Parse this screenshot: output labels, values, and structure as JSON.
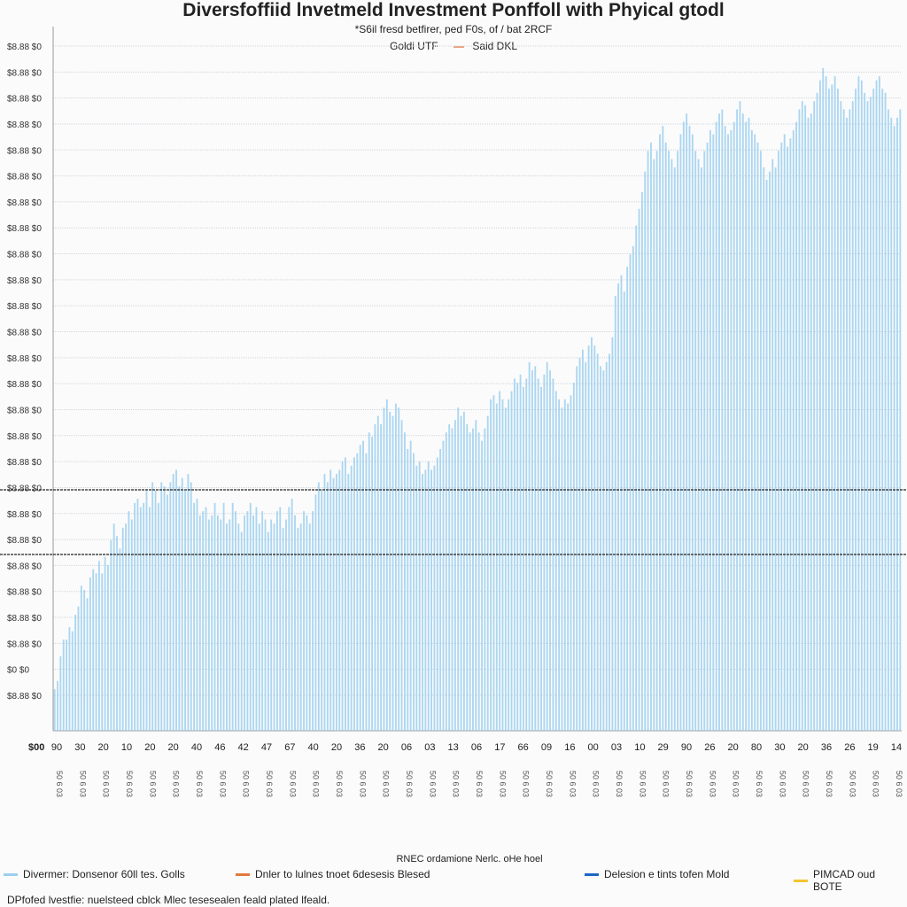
{
  "chart_data": {
    "type": "bar",
    "title": "Diversfoffiid lnvetmeld Investment Ponffoll with Phyical gtodl",
    "subtitle": "*S6il fresd betfirer, ped F0s, of / bat 2RCF",
    "legend_top": [
      {
        "label": "Goldi UTF",
        "color": "#7fbfe6"
      },
      {
        "label": "Said DKL",
        "color": "#e8a07c"
      }
    ],
    "y_tick_labels": [
      "$8.88 $0",
      "$8.88 $0",
      "$8.88 $0",
      "$8.88 $0",
      "$8.88 $0",
      "$8.88 $0",
      "$8.88 $0",
      "$8.88 $0",
      "$8.88 $0",
      "$8.88 $0",
      "$8.88 $0",
      "$8.88 $0",
      "$8.88 $0",
      "$8.88 $0",
      "$8.88 $0",
      "$8.88 $0",
      "$8.88 $0",
      "$8.88 $0",
      "$8.88 $0",
      "$8.88 $0",
      "$8.88 $0",
      "$8.88 $0",
      "$8.88 $0",
      "$8.88 $0",
      "$0 $0",
      "$8.88 $0"
    ],
    "origin_label": "$00",
    "x_tick_labels": [
      "90",
      "30",
      "20",
      "10",
      "20",
      "20",
      "40",
      "46",
      "42",
      "47",
      "67",
      "40",
      "20",
      "36",
      "20",
      "06",
      "03",
      "13",
      "06",
      "17",
      "66",
      "09",
      "16",
      "00",
      "03",
      "10",
      "29",
      "90",
      "26",
      "20",
      "80",
      "30",
      "20",
      "36",
      "26",
      "19",
      "14"
    ],
    "x_date_label": "50 6 03",
    "x_axis_title": "RNEC ordamione Nerlc. oHe hoel",
    "series": [
      {
        "name": "Divermer: Donsenor 60ll tes. Golls",
        "color": "#9ccfee",
        "values": [
          0.1,
          0.12,
          0.18,
          0.22,
          0.22,
          0.25,
          0.24,
          0.28,
          0.3,
          0.35,
          0.34,
          0.32,
          0.37,
          0.39,
          0.38,
          0.41,
          0.38,
          0.42,
          0.4,
          0.46,
          0.5,
          0.47,
          0.44,
          0.49,
          0.5,
          0.53,
          0.51,
          0.55,
          0.56,
          0.54,
          0.55,
          0.58,
          0.54,
          0.6,
          0.58,
          0.55,
          0.6,
          0.59,
          0.57,
          0.6,
          0.62,
          0.63,
          0.59,
          0.61,
          0.58,
          0.62,
          0.6,
          0.55,
          0.56,
          0.52,
          0.53,
          0.54,
          0.51,
          0.52,
          0.55,
          0.52,
          0.51,
          0.55,
          0.5,
          0.51,
          0.55,
          0.53,
          0.5,
          0.48,
          0.52,
          0.53,
          0.55,
          0.52,
          0.54,
          0.5,
          0.53,
          0.51,
          0.48,
          0.51,
          0.5,
          0.53,
          0.54,
          0.49,
          0.51,
          0.54,
          0.56,
          0.52,
          0.49,
          0.5,
          0.53,
          0.52,
          0.5,
          0.53,
          0.57,
          0.6,
          0.58,
          0.62,
          0.6,
          0.63,
          0.61,
          0.62,
          0.63,
          0.65,
          0.66,
          0.62,
          0.64,
          0.66,
          0.67,
          0.69,
          0.7,
          0.67,
          0.72,
          0.71,
          0.74,
          0.76,
          0.74,
          0.78,
          0.8,
          0.77,
          0.76,
          0.79,
          0.78,
          0.75,
          0.72,
          0.68,
          0.7,
          0.67,
          0.64,
          0.65,
          0.62,
          0.63,
          0.65,
          0.63,
          0.64,
          0.66,
          0.68,
          0.7,
          0.72,
          0.74,
          0.73,
          0.75,
          0.78,
          0.76,
          0.77,
          0.74,
          0.72,
          0.73,
          0.75,
          0.72,
          0.7,
          0.73,
          0.76,
          0.8,
          0.81,
          0.79,
          0.82,
          0.8,
          0.78,
          0.8,
          0.82,
          0.85,
          0.84,
          0.86,
          0.83,
          0.85,
          0.89,
          0.87,
          0.88,
          0.85,
          0.83,
          0.86,
          0.89,
          0.87,
          0.85,
          0.82,
          0.8,
          0.78,
          0.8,
          0.79,
          0.81,
          0.84,
          0.88,
          0.9,
          0.92,
          0.89,
          0.93,
          0.95,
          0.93,
          0.91,
          0.88,
          0.87,
          0.89,
          0.91,
          0.95,
          1.05,
          1.08,
          1.1,
          1.06,
          1.12,
          1.15,
          1.17,
          1.22,
          1.26,
          1.3,
          1.35,
          1.4,
          1.42,
          1.38,
          1.4,
          1.44,
          1.46,
          1.42,
          1.4,
          1.38,
          1.36,
          1.4,
          1.44,
          1.47,
          1.49,
          1.46,
          1.44,
          1.4,
          1.38,
          1.36,
          1.4,
          1.42,
          1.45,
          1.44,
          1.47,
          1.49,
          1.5,
          1.46,
          1.44,
          1.45,
          1.47,
          1.5,
          1.52,
          1.49,
          1.47,
          1.48,
          1.45,
          1.44,
          1.42,
          1.4,
          1.36,
          1.33,
          1.35,
          1.38,
          1.36,
          1.4,
          1.42,
          1.44,
          1.41,
          1.43,
          1.45,
          1.47,
          1.5,
          1.52,
          1.51,
          1.48,
          1.49,
          1.52,
          1.54,
          1.57,
          1.6,
          1.58,
          1.55,
          1.56,
          1.58,
          1.55,
          1.52,
          1.5,
          1.48,
          1.5,
          1.52,
          1.55,
          1.58,
          1.57,
          1.54,
          1.52,
          1.53,
          1.55,
          1.57,
          1.58,
          1.55,
          1.54,
          1.5,
          1.48,
          1.46,
          1.48,
          1.5
        ]
      }
    ],
    "reference_lines": [
      {
        "label": "Dnler to lulnes tnoet 6desesis Blesed",
        "color": "#e07a3c",
        "value": 0.58
      },
      {
        "label": "Delesion e tints tofen Mold",
        "color": "#1a66c4",
        "value": 0.48
      },
      {
        "label": "PIMCAD oud BOTE",
        "color": "#f2c531",
        "value": null
      }
    ],
    "ylim": [
      0,
      1.7
    ],
    "grid": true,
    "legend": "bottom"
  },
  "footnote": "DPfofed lvestfie: nuelsteed cblck Mlec tesesealen feald plated lfeald."
}
